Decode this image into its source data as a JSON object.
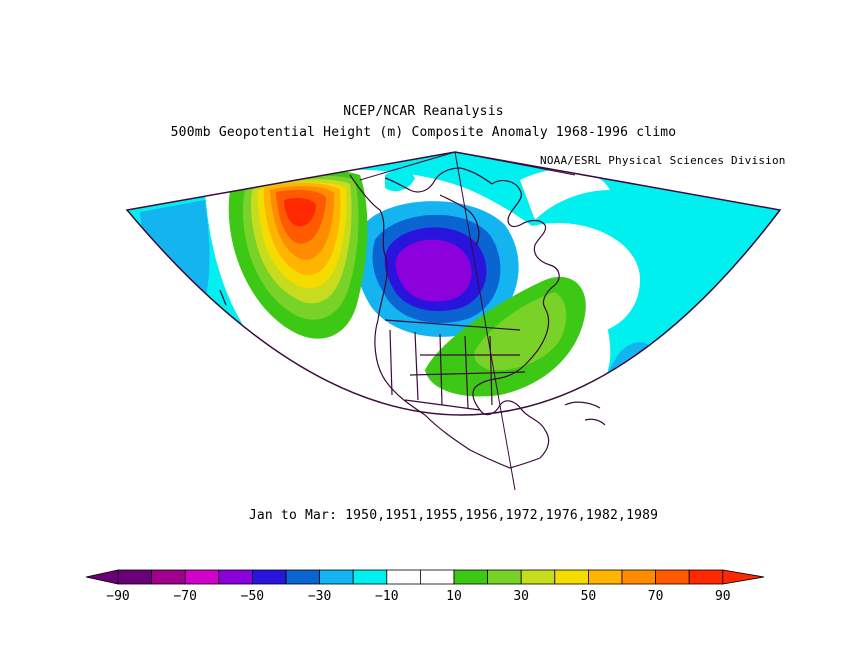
{
  "title": "NCEP/NCAR Reanalysis",
  "subtitle": "500mb Geopotential Height (m) Composite Anomaly 1968-1996 climo",
  "credit": "NOAA/ESRL Physical Sciences Division",
  "caption": "Jan to Mar: 1950,1951,1955,1956,1972,1976,1982,1989",
  "colorbar": {
    "colors": [
      "#6a0078",
      "#a0008c",
      "#d200c8",
      "#8c00dc",
      "#2814dc",
      "#0a64d2",
      "#14b4f0",
      "#00f0f0",
      "#ffffff",
      "#ffffff",
      "#3cc814",
      "#78d228",
      "#c8dc1e",
      "#f5dc00",
      "#ffb400",
      "#ff8c00",
      "#ff5a00",
      "#ff2800"
    ],
    "tick_labels": [
      "-90",
      "-70",
      "-50",
      "-30",
      "-10",
      "10",
      "30",
      "50",
      "70",
      "90"
    ]
  },
  "map_features": {
    "anomaly_minimum": "Pacific Northwest / Western Canada",
    "anomaly_maximum": "North Pacific (Gulf of Alaska)",
    "positive_anomaly_2": "Eastern United States"
  }
}
